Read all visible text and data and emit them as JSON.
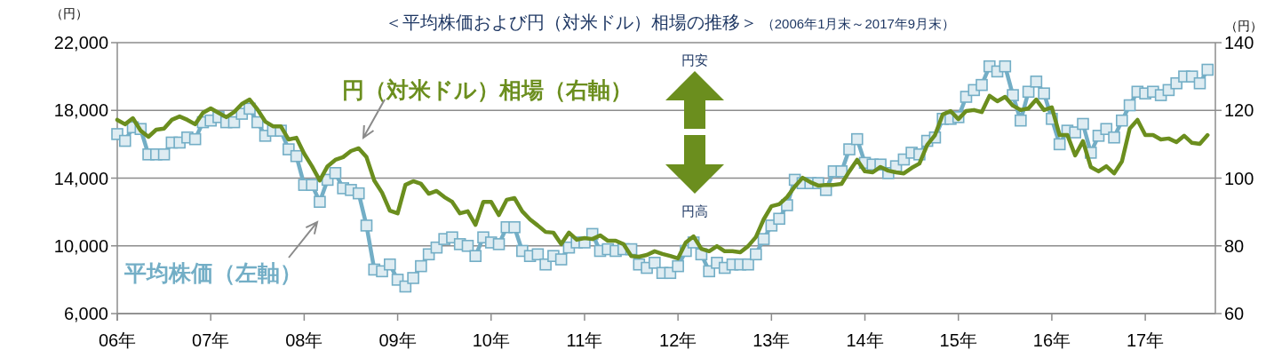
{
  "chart_data": {
    "type": "line",
    "title": "＜平均株価および円（対米ドル）相場の推移＞",
    "subtitle": "（2006年1月末～2017年9月末）",
    "ylabel": "（円）",
    "y2label": "（円）",
    "annotations": [
      "円安",
      "円高"
    ],
    "xlim": [
      "2006-01",
      "2017-10"
    ],
    "xticks": [
      {
        "value": "2006-01",
        "label": "06年"
      },
      {
        "value": "2007-01",
        "label": "07年"
      },
      {
        "value": "2008-01",
        "label": "08年"
      },
      {
        "value": "2009-01",
        "label": "09年"
      },
      {
        "value": "2010-01",
        "label": "10年"
      },
      {
        "value": "2011-01",
        "label": "11年"
      },
      {
        "value": "2012-01",
        "label": "12年"
      },
      {
        "value": "2013-01",
        "label": "13年"
      },
      {
        "value": "2014-01",
        "label": "14年"
      },
      {
        "value": "2015-01",
        "label": "15年"
      },
      {
        "value": "2016-01",
        "label": "16年"
      },
      {
        "value": "2017-01",
        "label": "17年"
      }
    ],
    "ylim": [
      6000,
      22000
    ],
    "yticks": [
      {
        "value": 6000,
        "label": "6,000"
      },
      {
        "value": 10000,
        "label": "10,000"
      },
      {
        "value": 14000,
        "label": "14,000"
      },
      {
        "value": 18000,
        "label": "18,000"
      },
      {
        "value": 22000,
        "label": "22,000"
      }
    ],
    "y2lim": [
      60,
      140
    ],
    "y2ticks": [
      60,
      80,
      100,
      120,
      140
    ],
    "grid": "y",
    "x": [
      "2006-01",
      "2006-02",
      "2006-03",
      "2006-04",
      "2006-05",
      "2006-06",
      "2006-07",
      "2006-08",
      "2006-09",
      "2006-10",
      "2006-11",
      "2006-12",
      "2007-01",
      "2007-02",
      "2007-03",
      "2007-04",
      "2007-05",
      "2007-06",
      "2007-07",
      "2007-08",
      "2007-09",
      "2007-10",
      "2007-11",
      "2007-12",
      "2008-01",
      "2008-02",
      "2008-03",
      "2008-04",
      "2008-05",
      "2008-06",
      "2008-07",
      "2008-08",
      "2008-09",
      "2008-10",
      "2008-11",
      "2008-12",
      "2009-01",
      "2009-02",
      "2009-03",
      "2009-04",
      "2009-05",
      "2009-06",
      "2009-07",
      "2009-08",
      "2009-09",
      "2009-10",
      "2009-11",
      "2009-12",
      "2010-01",
      "2010-02",
      "2010-03",
      "2010-04",
      "2010-05",
      "2010-06",
      "2010-07",
      "2010-08",
      "2010-09",
      "2010-10",
      "2010-11",
      "2010-12",
      "2011-01",
      "2011-02",
      "2011-03",
      "2011-04",
      "2011-05",
      "2011-06",
      "2011-07",
      "2011-08",
      "2011-09",
      "2011-10",
      "2011-11",
      "2011-12",
      "2012-01",
      "2012-02",
      "2012-03",
      "2012-04",
      "2012-05",
      "2012-06",
      "2012-07",
      "2012-08",
      "2012-09",
      "2012-10",
      "2012-11",
      "2012-12",
      "2013-01",
      "2013-02",
      "2013-03",
      "2013-04",
      "2013-05",
      "2013-06",
      "2013-07",
      "2013-08",
      "2013-09",
      "2013-10",
      "2013-11",
      "2013-12",
      "2014-01",
      "2014-02",
      "2014-03",
      "2014-04",
      "2014-05",
      "2014-06",
      "2014-07",
      "2014-08",
      "2014-09",
      "2014-10",
      "2014-11",
      "2014-12",
      "2015-01",
      "2015-02",
      "2015-03",
      "2015-04",
      "2015-05",
      "2015-06",
      "2015-07",
      "2015-08",
      "2015-09",
      "2015-10",
      "2015-11",
      "2015-12",
      "2016-01",
      "2016-02",
      "2016-03",
      "2016-04",
      "2016-05",
      "2016-06",
      "2016-07",
      "2016-08",
      "2016-09",
      "2016-10",
      "2016-11",
      "2016-12",
      "2017-01",
      "2017-02",
      "2017-03",
      "2017-04",
      "2017-05",
      "2017-06",
      "2017-07",
      "2017-08",
      "2017-09"
    ],
    "series": [
      {
        "name": "平均株価（左軸）",
        "color": "#73aec6",
        "marker": "square",
        "values": [
          16600,
          16200,
          17000,
          16900,
          15400,
          15400,
          15400,
          16100,
          16100,
          16400,
          16300,
          17300,
          17400,
          17600,
          17300,
          17300,
          17800,
          18100,
          17300,
          16500,
          16800,
          16800,
          15700,
          15300,
          13600,
          13600,
          12600,
          13900,
          14300,
          13400,
          13300,
          13100,
          11200,
          8600,
          8500,
          8900,
          8000,
          7600,
          8100,
          8800,
          9500,
          9900,
          10400,
          10500,
          10100,
          10000,
          9400,
          10500,
          10200,
          10100,
          11100,
          11100,
          9700,
          9400,
          9500,
          8900,
          9400,
          9200,
          9900,
          10200,
          10200,
          10700,
          9700,
          9800,
          9700,
          9800,
          9800,
          8900,
          8700,
          9000,
          8400,
          8400,
          8800,
          9700,
          10200,
          9500,
          8500,
          9000,
          8700,
          8900,
          8900,
          8900,
          9500,
          10400,
          11200,
          11600,
          12400,
          13900,
          13700,
          13700,
          13700,
          13300,
          14400,
          14400,
          15700,
          16300,
          14900,
          14800,
          14800,
          14300,
          14700,
          15100,
          15500,
          15400,
          16200,
          16400,
          17500,
          17500,
          17600,
          18800,
          19200,
          19500,
          20600,
          20300,
          20600,
          18900,
          17400,
          19100,
          19700,
          19000,
          17500,
          16000,
          16800,
          16700,
          17200,
          15500,
          16500,
          16900,
          16400,
          17400,
          18300,
          19100,
          19000,
          19100,
          18900,
          19200,
          19600,
          20000,
          20000,
          19600,
          20400
        ]
      },
      {
        "name": "円（対米ドル）相場（右軸）",
        "color": "#6b8e1e",
        "axis": "y2",
        "marker": "none",
        "values": [
          117.2,
          115.9,
          117.7,
          114.0,
          112.2,
          114.3,
          114.6,
          117.2,
          118.2,
          117.2,
          115.9,
          119.3,
          120.6,
          119.3,
          118.0,
          119.5,
          121.9,
          123.2,
          120.3,
          116.7,
          115.3,
          115.3,
          111.4,
          111.9,
          107.2,
          103.5,
          99.3,
          103.5,
          105.4,
          106.2,
          108.0,
          108.8,
          106.2,
          99.3,
          95.7,
          90.4,
          89.6,
          98.0,
          99.1,
          98.3,
          95.4,
          96.2,
          94.4,
          93.0,
          89.6,
          90.2,
          86.2,
          93.0,
          93.0,
          89.1,
          93.6,
          94.1,
          90.2,
          87.8,
          86.0,
          84.1,
          83.9,
          80.5,
          83.9,
          81.8,
          82.3,
          82.0,
          83.1,
          81.5,
          81.5,
          80.5,
          77.0,
          76.8,
          77.3,
          78.4,
          77.6,
          77.0,
          76.3,
          81.0,
          82.8,
          79.1,
          78.4,
          79.9,
          78.4,
          78.4,
          78.1,
          79.9,
          82.6,
          87.8,
          91.7,
          92.3,
          94.4,
          97.5,
          100.1,
          98.8,
          97.8,
          98.0,
          98.0,
          98.3,
          102.0,
          105.4,
          102.0,
          101.7,
          103.3,
          102.2,
          101.7,
          101.4,
          103.0,
          104.3,
          109.8,
          112.7,
          118.8,
          119.8,
          117.4,
          119.8,
          120.1,
          119.5,
          124.3,
          122.7,
          124.0,
          121.4,
          120.1,
          120.6,
          123.2,
          120.1,
          120.9,
          112.7,
          112.7,
          106.7,
          110.9,
          103.3,
          102.0,
          103.5,
          101.4,
          104.9,
          114.6,
          117.2,
          112.7,
          112.7,
          111.4,
          111.7,
          110.6,
          112.5,
          110.4,
          110.1,
          112.7
        ]
      }
    ]
  }
}
